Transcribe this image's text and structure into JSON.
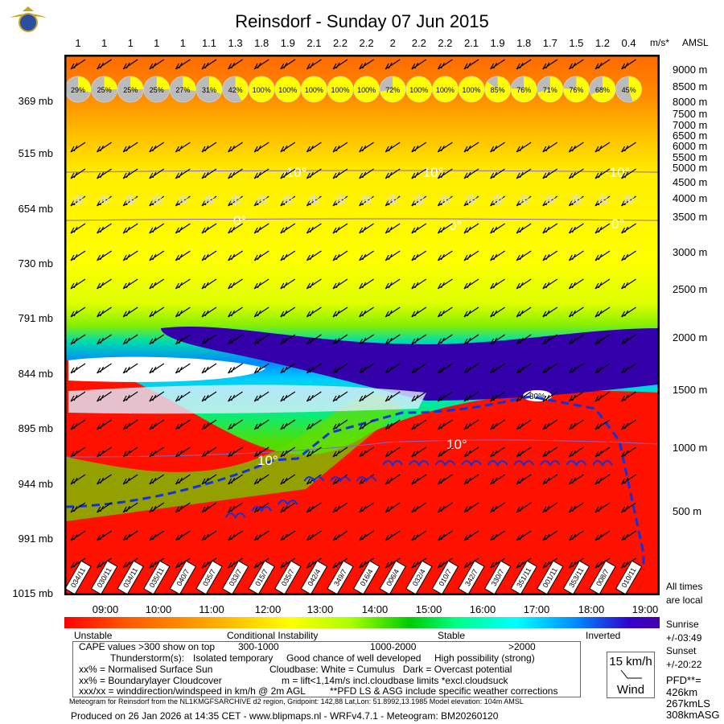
{
  "title": "Reinsdorf - Sunday 07 Jun 2015",
  "top_axis": {
    "values": [
      "1",
      "1",
      "1",
      "1",
      "1",
      "1.1",
      "1.3",
      "1.8",
      "1.9",
      "2.1",
      "2.2",
      "2.2",
      "2",
      "2.2",
      "2.2",
      "2.1",
      "1.9",
      "1.8",
      "1.7",
      "1.5",
      "1.2",
      "0.4"
    ],
    "unit": "m/s*",
    "amsl": "AMSL"
  },
  "chart_data": {
    "type": "heatmap",
    "title": "Reinsdorf - Sunday 07 Jun 2015",
    "times": [
      "09:00",
      "10:00",
      "11:00",
      "12:00",
      "13:00",
      "14:00",
      "15:00",
      "16:00",
      "17:00",
      "18:00",
      "19:00"
    ],
    "pressure_levels": [
      "369 mb",
      "515 mb",
      "654 mb",
      "730 mb",
      "791 mb",
      "844 mb",
      "895 mb",
      "944 mb",
      "991 mb",
      "1015 mb"
    ],
    "altitudes": [
      "9000 m",
      "8500 m",
      "8000 m",
      "7500 m",
      "7000 m",
      "6500 m",
      "6000 m",
      "5500 m",
      "5000 m",
      "4500 m",
      "4000 m",
      "3500 m",
      "3000 m",
      "2500 m",
      "2000 m",
      "1500 m",
      "1000 m",
      "500 m"
    ],
    "thermal_updraft_ms": [
      1,
      1,
      1,
      1,
      1,
      1.1,
      1.3,
      1.8,
      1.9,
      2.1,
      2.2,
      2.2,
      2,
      2.2,
      2.2,
      2.1,
      1.9,
      1.8,
      1.7,
      1.5,
      1.2,
      0.4
    ],
    "surface_sun": [
      "29%",
      "25%",
      "25%",
      "25%",
      "27%",
      "31%",
      "42%",
      "100%",
      "100%",
      "100%",
      "100%",
      "100%",
      "72%",
      "100%",
      "100%",
      "100%",
      "85%",
      "76%",
      "71%",
      "76%",
      "68%",
      "45%"
    ],
    "surface_sun_values": [
      29,
      25,
      25,
      25,
      27,
      31,
      42,
      100,
      100,
      100,
      100,
      100,
      72,
      100,
      100,
      100,
      85,
      76,
      71,
      76,
      68,
      45
    ],
    "surface_wind": [
      "034/11",
      "030/11",
      "034/11",
      "035/11",
      "040/7",
      "035/7",
      "033/7",
      "015/7",
      "035/7",
      "042/4",
      "349/7",
      "016/4",
      "006/4",
      "032/4",
      "010/7",
      "342/7",
      "330/7",
      "351/11",
      "001/11",
      "353/11",
      "008/7",
      "010/11"
    ],
    "isotherms": [
      "-10°",
      "-10°",
      "-10°",
      "0°",
      "0°",
      "0°",
      "10°",
      "10°"
    ],
    "cloud_label": "80%",
    "colorbar": {
      "labels": [
        "Unstable",
        "Conditional Instability",
        "Stable",
        "Inverted"
      ]
    }
  },
  "times_note": [
    "All times",
    "are local"
  ],
  "legend": {
    "cape": "CAPE values >300 show on top",
    "cape_ranges": [
      "300-1000",
      "1000-2000",
      ">2000"
    ],
    "thunder": "Thunderstorm(s):",
    "thunder_levels": [
      "Isolated temporary",
      "Good chance of well developed",
      "High possibility (strong)"
    ],
    "sun": "xx% = Normalised Surface Sun",
    "cloudbase": "Cloudbase: White = Cumulus   Dark = Overcast potential",
    "bl": "xx% = Boundarylayer Cloudcover",
    "lift": "m = lift<1,14m/s incl.cloudbase limits *excl.cloudsuck",
    "wind": "xxx/xx = winddirection/windspeed in km/h @ 2m AGL",
    "pfd_note": "**PFD LS & ASG include specific weather corrections"
  },
  "windbox": {
    "speed": "15 km/h",
    "label": "Wind"
  },
  "side": {
    "sunrise": "Sunrise",
    "sunrise_val": "+/-03:49",
    "sunset": "Sunset",
    "sunset_val": "+/-20:22",
    "pfd": "PFD**=",
    "pfd1": "426km",
    "pfd2": "267kmLS",
    "pfd3": "308kmASG"
  },
  "footer": {
    "meta": "Meteogram for Reinsdorf from the NL1KMGFSARCHIVE d2 region, Gridpoint: 142,88 Lat,Lon: 51.8992,13.1985 Model elevation: 104m AMSL",
    "produced": "Produced on 26 Jan 2026 at 14:35 CET - www.blipmaps.nl - WRFv4.7.1 - Meteogram: BM20260120"
  },
  "colors": {
    "red": "#ff0000",
    "orange": "#ff7700",
    "yellow": "#ffff00",
    "green": "#33cc33",
    "blue": "#0066ff",
    "purple": "#4400aa",
    "cloudbase": "#1133dd"
  }
}
